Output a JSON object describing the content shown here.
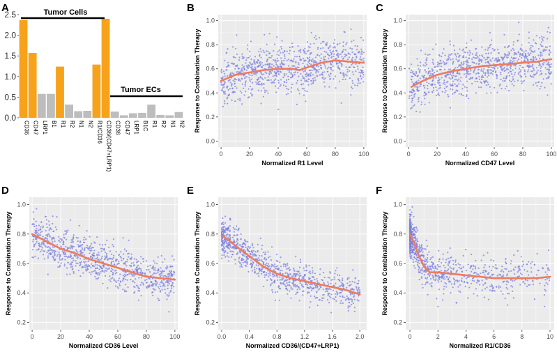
{
  "colors": {
    "bar_highlight": "#f7a21b",
    "bar_plain": "#bdbdbd",
    "point": "#7b7fe0",
    "trend": "#f07a5c",
    "panel_bg": "#ebebeb",
    "grid": "#ffffff"
  },
  "chart_data": [
    {
      "panel": "A",
      "type": "bar",
      "title": "",
      "groups": [
        {
          "label": "Tumor Cells",
          "categories": [
            "CD36",
            "CD47",
            "LRP1",
            "B1",
            "R1",
            "R2",
            "N1",
            "N2",
            "R1/CD36",
            "CD36/(CD47+LRP1)"
          ]
        },
        {
          "label": "Tumor ECs",
          "categories": [
            "CD36",
            "CD47",
            "LRP1",
            "B1C",
            "R1",
            "R2",
            "N1",
            "N2"
          ]
        }
      ],
      "categories": [
        "CD36",
        "CD47",
        "LRP1",
        "B1",
        "R1",
        "R2",
        "N1",
        "N2",
        "R1/CD36",
        "CD36/(CD47+LRP1)",
        "CD36",
        "CD47",
        "LRP1",
        "B1C",
        "R1",
        "R2",
        "N1",
        "N2"
      ],
      "values": [
        2.37,
        1.57,
        0.58,
        0.58,
        1.24,
        0.32,
        0.16,
        0.17,
        1.29,
        2.4,
        0.15,
        0.06,
        0.11,
        0.12,
        0.32,
        0.07,
        0.06,
        0.14
      ],
      "highlight": [
        true,
        true,
        false,
        false,
        true,
        false,
        false,
        false,
        true,
        true,
        false,
        false,
        false,
        false,
        false,
        false,
        false,
        false
      ],
      "ylim": [
        0,
        2.5
      ],
      "yticks": [
        "0.0",
        "0.5",
        "1.0",
        "1.5",
        "2.0",
        "2.5"
      ],
      "xlabel": "",
      "ylabel": ""
    },
    {
      "panel": "B",
      "type": "scatter",
      "xlabel": "Normalized R1 Level",
      "ylabel": "Response to Combination Therapy",
      "xlim": [
        -2,
        102
      ],
      "ylim": [
        -0.05,
        1.05
      ],
      "xticks": [
        "0",
        "20",
        "40",
        "60",
        "80",
        "100"
      ],
      "yticks": [
        "0.0",
        "0.2",
        "0.4",
        "0.6",
        "0.8",
        "1.0"
      ],
      "trend": {
        "x": [
          0,
          10,
          20,
          30,
          40,
          50,
          55,
          60,
          70,
          80,
          90,
          100
        ],
        "y": [
          0.5,
          0.55,
          0.57,
          0.59,
          0.6,
          0.6,
          0.59,
          0.61,
          0.65,
          0.67,
          0.66,
          0.65
        ]
      },
      "points": {
        "n": 900,
        "x_range": [
          0,
          100
        ],
        "x_dist": "uniform",
        "noise_sd": 0.1
      }
    },
    {
      "panel": "C",
      "type": "scatter",
      "xlabel": "Normalized CD47 Level",
      "ylabel": "Response to Combination Therapy",
      "xlim": [
        -2,
        102
      ],
      "ylim": [
        -0.05,
        1.05
      ],
      "xticks": [
        "0",
        "20",
        "40",
        "60",
        "80",
        "100"
      ],
      "yticks": [
        "0.0",
        "0.2",
        "0.4",
        "0.6",
        "0.8",
        "1.0"
      ],
      "trend": {
        "x": [
          2,
          10,
          20,
          30,
          40,
          50,
          60,
          70,
          80,
          90,
          100
        ],
        "y": [
          0.45,
          0.5,
          0.55,
          0.58,
          0.6,
          0.62,
          0.63,
          0.64,
          0.65,
          0.66,
          0.68
        ]
      },
      "points": {
        "n": 900,
        "x_range": [
          0,
          100
        ],
        "x_dist": "uniform",
        "noise_sd": 0.1
      }
    },
    {
      "panel": "D",
      "type": "scatter",
      "xlabel": "Normalized CD36 Level",
      "ylabel": "Response to Combination Therapy",
      "xlim": [
        -2,
        102
      ],
      "ylim": [
        0.15,
        1.05
      ],
      "xticks": [
        "0",
        "20",
        "40",
        "60",
        "80",
        "100"
      ],
      "yticks": [
        "0.2",
        "0.4",
        "0.6",
        "0.8",
        "1.0"
      ],
      "trend": {
        "x": [
          0,
          10,
          20,
          30,
          40,
          50,
          60,
          70,
          80,
          90,
          100
        ],
        "y": [
          0.8,
          0.75,
          0.7,
          0.67,
          0.63,
          0.6,
          0.57,
          0.54,
          0.51,
          0.5,
          0.49
        ]
      },
      "points": {
        "n": 900,
        "x_range": [
          0,
          100
        ],
        "x_dist": "uniform",
        "noise_sd": 0.07
      }
    },
    {
      "panel": "E",
      "type": "scatter",
      "xlabel": "Normalized CD36/(CD47+LRP1)",
      "ylabel": "Response to Combination Therapy",
      "xlim": [
        -0.05,
        2.1
      ],
      "ylim": [
        0.15,
        1.05
      ],
      "xticks": [
        "0.0",
        "0.4",
        "0.8",
        "1.2",
        "1.6",
        "2.0"
      ],
      "yticks": [
        "0.2",
        "0.4",
        "0.6",
        "0.8",
        "1.0"
      ],
      "trend": {
        "x": [
          0,
          0.1,
          0.2,
          0.4,
          0.6,
          0.8,
          1.0,
          1.2,
          1.4,
          1.6,
          1.8,
          2.0
        ],
        "y": [
          0.79,
          0.76,
          0.72,
          0.65,
          0.58,
          0.53,
          0.5,
          0.48,
          0.46,
          0.44,
          0.42,
          0.39
        ]
      },
      "points": {
        "n": 900,
        "x_range": [
          0,
          2
        ],
        "x_dist": "skewed",
        "noise_sd": 0.06
      }
    },
    {
      "panel": "F",
      "type": "scatter",
      "xlabel": "Normalized R1/CD36",
      "ylabel": "Response to Combination Therapy",
      "xlim": [
        -0.3,
        10.3
      ],
      "ylim": [
        0.15,
        1.05
      ],
      "xticks": [
        "0",
        "2",
        "4",
        "6",
        "8",
        "10"
      ],
      "yticks": [
        "0.2",
        "0.4",
        "0.6",
        "0.8",
        "1.0"
      ],
      "trend": {
        "x": [
          0,
          0.3,
          0.6,
          1.0,
          1.4,
          2,
          3,
          4,
          5,
          6,
          7,
          8,
          9,
          10
        ],
        "y": [
          0.8,
          0.74,
          0.66,
          0.58,
          0.54,
          0.54,
          0.53,
          0.52,
          0.51,
          0.5,
          0.5,
          0.5,
          0.5,
          0.51
        ]
      },
      "points": {
        "n": 900,
        "x_range": [
          0,
          10
        ],
        "x_dist": "strong_skew",
        "noise_sd": 0.07
      }
    }
  ]
}
